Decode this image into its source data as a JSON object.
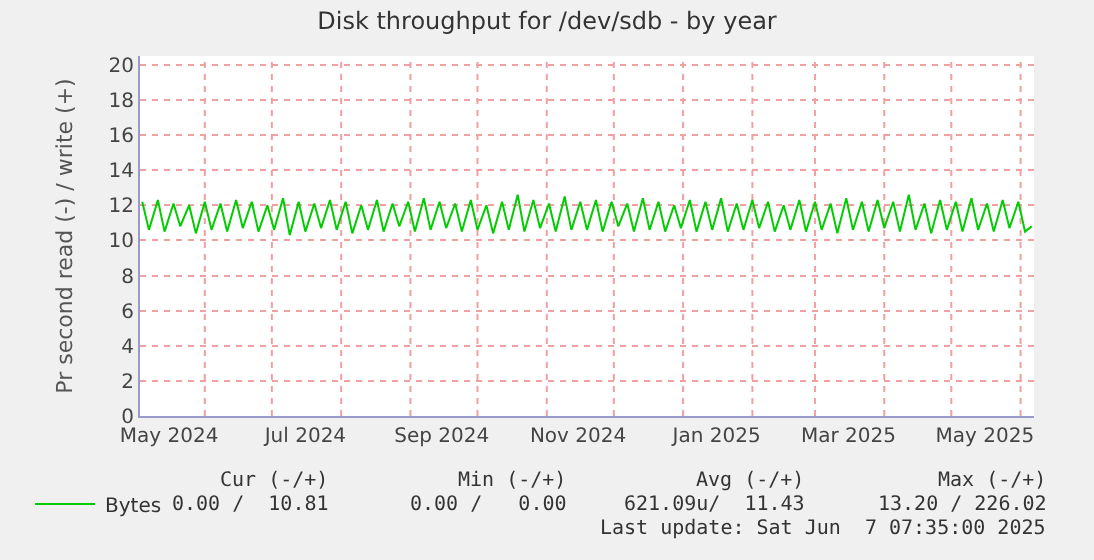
{
  "chart_data": {
    "type": "line",
    "title": "Disk throughput for /dev/sdb - by year",
    "ylabel": "Pr second read (-) / write (+)",
    "x": [
      "2024-05-04",
      "2024-05-07",
      "2024-05-11",
      "2024-05-14",
      "2024-05-18",
      "2024-05-21",
      "2024-05-25",
      "2024-05-28",
      "2024-06-01",
      "2024-06-04",
      "2024-06-08",
      "2024-06-11",
      "2024-06-15",
      "2024-06-18",
      "2024-06-22",
      "2024-06-25",
      "2024-06-29",
      "2024-07-02",
      "2024-07-06",
      "2024-07-09",
      "2024-07-13",
      "2024-07-16",
      "2024-07-20",
      "2024-07-23",
      "2024-07-27",
      "2024-07-30",
      "2024-08-03",
      "2024-08-06",
      "2024-08-10",
      "2024-08-13",
      "2024-08-17",
      "2024-08-20",
      "2024-08-24",
      "2024-08-27",
      "2024-08-31",
      "2024-09-03",
      "2024-09-07",
      "2024-09-10",
      "2024-09-14",
      "2024-09-17",
      "2024-09-21",
      "2024-09-24",
      "2024-09-28",
      "2024-10-01",
      "2024-10-05",
      "2024-10-08",
      "2024-10-12",
      "2024-10-15",
      "2024-10-19",
      "2024-10-22",
      "2024-10-26",
      "2024-10-29",
      "2024-11-02",
      "2024-11-05",
      "2024-11-09",
      "2024-11-12",
      "2024-11-16",
      "2024-11-19",
      "2024-11-23",
      "2024-11-26",
      "2024-11-30",
      "2024-12-03",
      "2024-12-07",
      "2024-12-10",
      "2024-12-14",
      "2024-12-17",
      "2024-12-21",
      "2024-12-24",
      "2024-12-28",
      "2024-12-31",
      "2025-01-04",
      "2025-01-07",
      "2025-01-11",
      "2025-01-14",
      "2025-01-18",
      "2025-01-21",
      "2025-01-25",
      "2025-01-28",
      "2025-02-01",
      "2025-02-04",
      "2025-02-08",
      "2025-02-11",
      "2025-02-15",
      "2025-02-18",
      "2025-02-22",
      "2025-02-25",
      "2025-03-01",
      "2025-03-04",
      "2025-03-08",
      "2025-03-11",
      "2025-03-15",
      "2025-03-18",
      "2025-03-22",
      "2025-03-25",
      "2025-03-29",
      "2025-04-01",
      "2025-04-05",
      "2025-04-08",
      "2025-04-12",
      "2025-04-15",
      "2025-04-19",
      "2025-04-22",
      "2025-04-26",
      "2025-04-29",
      "2025-05-03",
      "2025-05-06",
      "2025-05-10",
      "2025-05-13",
      "2025-05-17",
      "2025-05-20",
      "2025-05-24",
      "2025-05-27",
      "2025-05-31",
      "2025-06-03",
      "2025-06-06"
    ],
    "series": [
      {
        "name": "Bytes",
        "color": "#00cc00",
        "values": [
          12.2,
          10.6,
          12.3,
          10.5,
          12.1,
          10.8,
          12.0,
          10.4,
          12.2,
          10.6,
          12.1,
          10.5,
          12.3,
          10.7,
          12.2,
          10.5,
          12.0,
          10.6,
          12.4,
          10.3,
          12.2,
          10.5,
          12.1,
          10.7,
          12.3,
          10.6,
          12.2,
          10.4,
          12.0,
          10.6,
          12.3,
          10.5,
          12.1,
          10.8,
          12.2,
          10.5,
          12.4,
          10.6,
          12.2,
          10.7,
          12.1,
          10.5,
          12.3,
          10.6,
          12.0,
          10.4,
          12.2,
          10.6,
          12.6,
          10.5,
          12.3,
          10.7,
          12.1,
          10.5,
          12.5,
          10.6,
          12.2,
          10.6,
          12.3,
          10.5,
          12.2,
          10.8,
          12.1,
          10.5,
          12.4,
          10.6,
          12.2,
          10.5,
          12.0,
          10.7,
          12.3,
          10.5,
          12.2,
          10.6,
          12.4,
          10.5,
          12.1,
          10.6,
          12.3,
          10.7,
          12.2,
          10.5,
          12.0,
          10.6,
          12.3,
          10.5,
          12.2,
          10.6,
          12.1,
          10.4,
          12.4,
          10.6,
          12.2,
          10.5,
          12.3,
          10.7,
          12.2,
          10.5,
          12.6,
          10.6,
          12.1,
          10.4,
          12.3,
          10.6,
          12.2,
          10.5,
          12.4,
          10.6,
          12.1,
          10.5,
          12.3,
          10.7,
          12.2,
          10.5,
          10.81
        ]
      }
    ],
    "xlim": [
      "2024-05-03",
      "2025-06-07"
    ],
    "xticks": [
      {
        "value": "2024-05-16",
        "label": "May 2024"
      },
      {
        "value": "2024-06-01",
        "label": null
      },
      {
        "value": "2024-07-01",
        "label": null
      },
      {
        "value": "2024-07-16",
        "label": "Jul 2024"
      },
      {
        "value": "2024-08-01",
        "label": null
      },
      {
        "value": "2024-09-01",
        "label": null
      },
      {
        "value": "2024-09-15",
        "label": "Sep 2024"
      },
      {
        "value": "2024-10-01",
        "label": null
      },
      {
        "value": "2024-11-01",
        "label": null
      },
      {
        "value": "2024-11-15",
        "label": "Nov 2024"
      },
      {
        "value": "2024-12-01",
        "label": null
      },
      {
        "value": "2025-01-01",
        "label": null
      },
      {
        "value": "2025-01-16",
        "label": "Jan 2025"
      },
      {
        "value": "2025-02-01",
        "label": null
      },
      {
        "value": "2025-03-01",
        "label": null
      },
      {
        "value": "2025-03-16",
        "label": "Mar 2025"
      },
      {
        "value": "2025-04-01",
        "label": null
      },
      {
        "value": "2025-05-01",
        "label": null
      },
      {
        "value": "2025-05-16",
        "label": "May 2025"
      },
      {
        "value": "2025-06-01",
        "label": null
      }
    ],
    "ylim": [
      0,
      20.5
    ],
    "yticks": [
      0,
      2,
      4,
      6,
      8,
      10,
      12,
      14,
      16,
      18,
      20
    ],
    "grid": true,
    "legend": "bottom left",
    "marker": "none",
    "line_style": "solid",
    "annotations": [
      "Cur (-/+)",
      "Min (-/+)",
      "Avg (-/+)",
      "Max (-/+)",
      "0.00 /  10.81",
      "0.00 /   0.00",
      "621.09u/  11.43",
      "13.20 / 226.02",
      "Last update: Sat Jun  7 07:35:00 2025"
    ]
  }
}
